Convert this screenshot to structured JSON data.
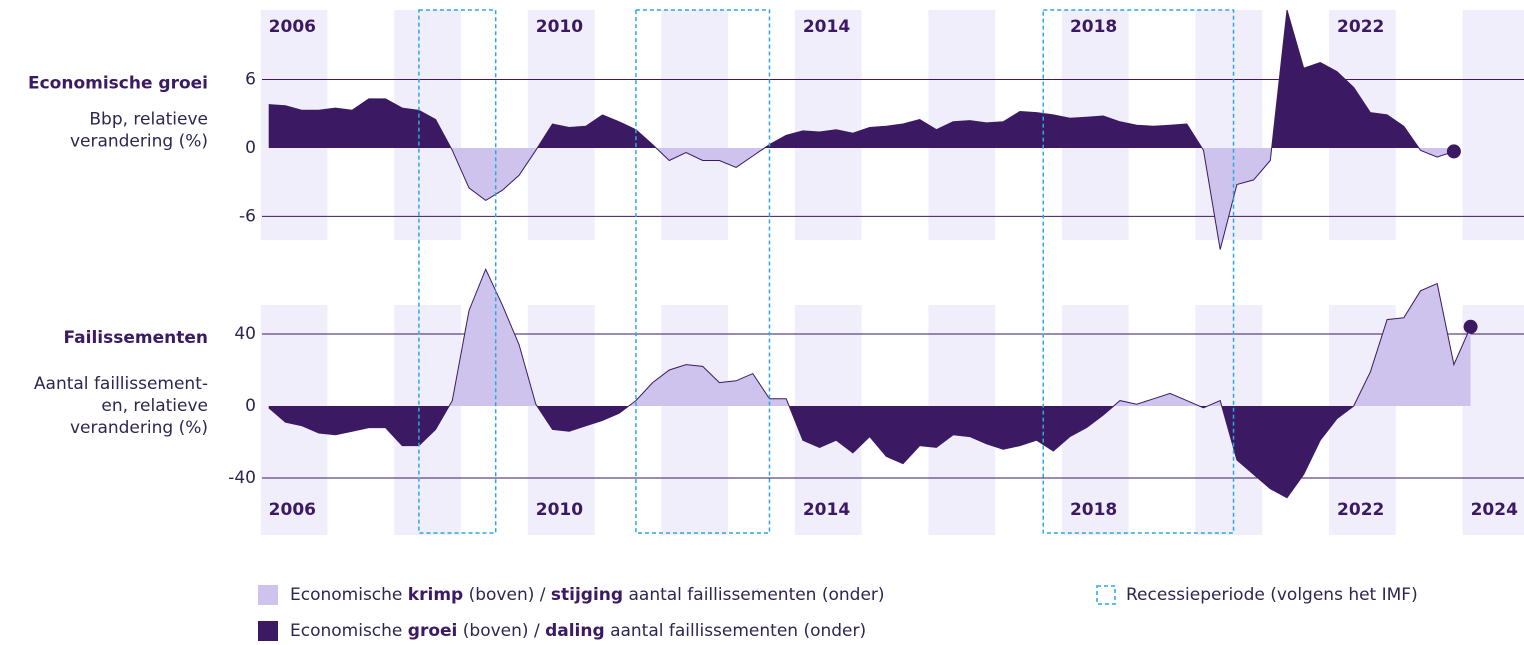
{
  "chart_data": [
    {
      "type": "area",
      "title": "Economische groei",
      "subtitle": [
        "Bbp, relatieve",
        "verandering (%)"
      ],
      "x": [
        2006,
        2006.25,
        2006.5,
        2006.75,
        2007,
        2007.25,
        2007.5,
        2007.75,
        2008,
        2008.25,
        2008.5,
        2008.75,
        2009,
        2009.25,
        2009.5,
        2009.75,
        2010,
        2010.25,
        2010.5,
        2010.75,
        2011,
        2011.25,
        2011.5,
        2011.75,
        2012,
        2012.25,
        2012.5,
        2012.75,
        2013,
        2013.25,
        2013.5,
        2013.75,
        2014,
        2014.25,
        2014.5,
        2014.75,
        2015,
        2015.25,
        2015.5,
        2015.75,
        2016,
        2016.25,
        2016.5,
        2016.75,
        2017,
        2017.25,
        2017.5,
        2017.75,
        2018,
        2018.25,
        2018.5,
        2018.75,
        2019,
        2019.25,
        2019.5,
        2019.75,
        2020,
        2020.25,
        2020.5,
        2020.75,
        2021,
        2021.25,
        2021.5,
        2021.75,
        2022,
        2022.25,
        2022.5,
        2022.75,
        2023,
        2023.25,
        2023.5,
        2023.75
      ],
      "values": [
        3.8,
        3.7,
        3.3,
        3.3,
        3.5,
        3.3,
        4.3,
        4.3,
        3.5,
        3.3,
        2.5,
        -0.2,
        -3.5,
        -4.6,
        -3.7,
        -2.4,
        -0.2,
        2.1,
        1.8,
        1.9,
        2.9,
        2.3,
        1.6,
        0.3,
        -1.1,
        -0.4,
        -1.1,
        -1.1,
        -1.7,
        -0.7,
        0.3,
        1.1,
        1.5,
        1.4,
        1.6,
        1.3,
        1.8,
        1.9,
        2.1,
        2.5,
        1.6,
        2.3,
        2.4,
        2.2,
        2.3,
        3.2,
        3.1,
        2.9,
        2.6,
        2.7,
        2.8,
        2.3,
        2.0,
        1.9,
        2.0,
        2.1,
        -0.2,
        -8.9,
        -3.2,
        -2.8,
        -1.1,
        12.1,
        7.0,
        7.5,
        6.7,
        5.3,
        3.1,
        2.9,
        1.9,
        -0.2,
        -0.8,
        -0.3
      ],
      "positive_color": "#3b1a63",
      "negative_color": "#cdc3ec",
      "xlim": [
        2005.9,
        2024.8
      ],
      "xticks": [
        2006,
        2010,
        2014,
        2018,
        2022
      ],
      "xaxis_position": "top",
      "ylim": [
        -8.07,
        12.1
      ],
      "yticks": [
        6,
        0,
        -6
      ],
      "end_marker": true
    },
    {
      "type": "area",
      "title": "Failissementen",
      "subtitle": [
        "Aantal faillissement-",
        "en, relatieve",
        "verandering (%)"
      ],
      "x": [
        2006,
        2006.25,
        2006.5,
        2006.75,
        2007,
        2007.25,
        2007.5,
        2007.75,
        2008,
        2008.25,
        2008.5,
        2008.75,
        2009,
        2009.25,
        2009.5,
        2009.75,
        2010,
        2010.25,
        2010.5,
        2010.75,
        2011,
        2011.25,
        2011.5,
        2011.75,
        2012,
        2012.25,
        2012.5,
        2012.75,
        2013,
        2013.25,
        2013.5,
        2013.75,
        2014,
        2014.25,
        2014.5,
        2014.75,
        2015,
        2015.25,
        2015.5,
        2015.75,
        2016,
        2016.25,
        2016.5,
        2016.75,
        2017,
        2017.25,
        2017.5,
        2017.75,
        2018,
        2018.25,
        2018.5,
        2018.75,
        2019,
        2019.25,
        2019.5,
        2019.75,
        2020,
        2020.25,
        2020.5,
        2020.75,
        2021,
        2021.25,
        2021.5,
        2021.75,
        2022,
        2022.25,
        2022.5,
        2022.75,
        2023,
        2023.25,
        2023.5,
        2023.75,
        2024
      ],
      "values": [
        -1,
        -9,
        -11,
        -15,
        -16,
        -14,
        -12,
        -12,
        -22,
        -22,
        -13,
        3,
        53,
        76,
        56,
        34,
        1,
        -13,
        -14,
        -11,
        -8,
        -4,
        3,
        13,
        20,
        23,
        22,
        13,
        14,
        18,
        4,
        4,
        -19,
        -23,
        -19,
        -26,
        -17,
        -28,
        -32,
        -22,
        -23,
        -16,
        -17,
        -21,
        -24,
        -22,
        -19,
        -25,
        -17,
        -12,
        -5,
        3,
        1,
        4,
        7,
        3,
        -1,
        3,
        -30,
        -38,
        -46,
        -51,
        -38,
        -19,
        -7,
        0,
        19,
        48,
        49,
        64,
        68,
        23,
        44
      ],
      "positive_color": "#cdc3ec",
      "negative_color": "#3b1a63",
      "xlim": [
        2005.9,
        2024.8
      ],
      "xticks": [
        2006,
        2010,
        2014,
        2018,
        2022,
        2024
      ],
      "xaxis_position": "bottom",
      "ylim": [
        -71.7,
        56.1
      ],
      "yticks": [
        40,
        0,
        -40
      ],
      "end_marker": true
    }
  ],
  "recessions": [
    [
      2008.25,
      2009.4
    ],
    [
      2011.5,
      2013.5
    ],
    [
      2017.6,
      2020.45
    ]
  ],
  "recession_color": "#29a9e0",
  "legend": [
    {
      "parts": [
        "Economische ",
        "krimp",
        " (boven) / ",
        "stijging",
        " aantal faillissementen (onder)"
      ],
      "color": "#cdc3ec"
    },
    {
      "parts": [
        "Economische ",
        "groei",
        " (boven) / ",
        "daling",
        " aantal faillissementen (onder)"
      ],
      "color": "#3b1a63"
    },
    {
      "label": "Recessieperiode (volgens het IMF)",
      "color": "#29a9e0"
    }
  ]
}
